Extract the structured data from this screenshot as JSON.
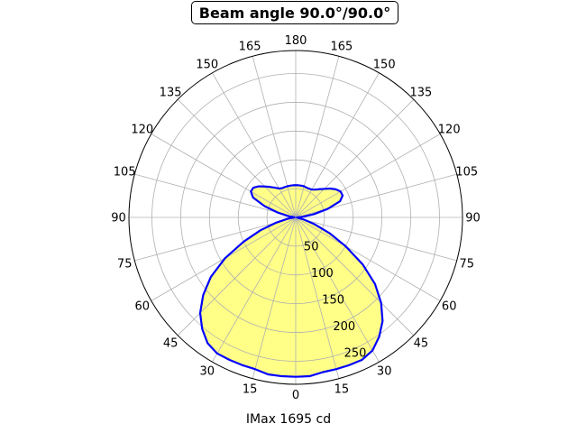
{
  "chart_data": {
    "type": "polar-area",
    "title": "Beam angle 90.0°/90.0°",
    "xlabel": "IMax 1695 cd",
    "angle_tick_labels": [
      {
        "angle": 0,
        "label": "0"
      },
      {
        "angle": 15,
        "label": "15"
      },
      {
        "angle": 30,
        "label": "30"
      },
      {
        "angle": 45,
        "label": "45"
      },
      {
        "angle": 60,
        "label": "60"
      },
      {
        "angle": 75,
        "label": "75"
      },
      {
        "angle": 90,
        "label": "90"
      },
      {
        "angle": 105,
        "label": "105"
      },
      {
        "angle": 120,
        "label": "120"
      },
      {
        "angle": 135,
        "label": "135"
      },
      {
        "angle": 150,
        "label": "150"
      },
      {
        "angle": 165,
        "label": "165"
      },
      {
        "angle": 180,
        "label": "180"
      },
      {
        "angle": 195,
        "label": "165"
      },
      {
        "angle": 210,
        "label": "150"
      },
      {
        "angle": 225,
        "label": "135"
      },
      {
        "angle": 240,
        "label": "120"
      },
      {
        "angle": 255,
        "label": "105"
      },
      {
        "angle": 270,
        "label": "90"
      },
      {
        "angle": 285,
        "label": "75"
      },
      {
        "angle": 300,
        "label": "60"
      },
      {
        "angle": 315,
        "label": "45"
      },
      {
        "angle": 330,
        "label": "30"
      },
      {
        "angle": 345,
        "label": "15"
      }
    ],
    "radial_ticks": [
      50,
      100,
      150,
      200,
      250
    ],
    "rmax": 290,
    "grid": true,
    "fill_color": "#ffff88",
    "line_color": "#0000ff",
    "series": [
      {
        "angles": [
          0,
          5,
          10,
          15,
          20,
          25,
          30,
          35,
          40,
          45,
          50,
          55,
          60,
          65,
          70,
          75,
          80,
          85,
          90,
          95,
          100,
          105,
          110,
          115,
          120,
          125,
          130,
          135,
          140,
          145,
          150,
          155,
          160,
          165,
          170,
          175,
          180,
          185,
          190,
          195,
          200,
          205,
          210,
          215,
          220,
          225,
          230,
          235,
          240,
          245,
          250,
          255,
          260,
          265,
          270,
          275,
          280,
          285,
          290,
          295,
          300,
          305,
          310,
          315,
          320,
          325,
          330,
          335,
          340,
          345,
          350,
          355,
          360
        ],
        "values": [
          277,
          277,
          273,
          273,
          273,
          273,
          267,
          253,
          235,
          210,
          180,
          142,
          100,
          65,
          35,
          15,
          4,
          2,
          3,
          12,
          32,
          58,
          82,
          90,
          90,
          85,
          78,
          70,
          64,
          59,
          56,
          55,
          55,
          56,
          56,
          56,
          56,
          56,
          56,
          56,
          56,
          56,
          58,
          63,
          69,
          76,
          84,
          90,
          90,
          82,
          58,
          32,
          12,
          3,
          2,
          4,
          15,
          35,
          65,
          100,
          142,
          180,
          210,
          235,
          253,
          267,
          273,
          273,
          273,
          273,
          277,
          277,
          277
        ]
      }
    ]
  }
}
